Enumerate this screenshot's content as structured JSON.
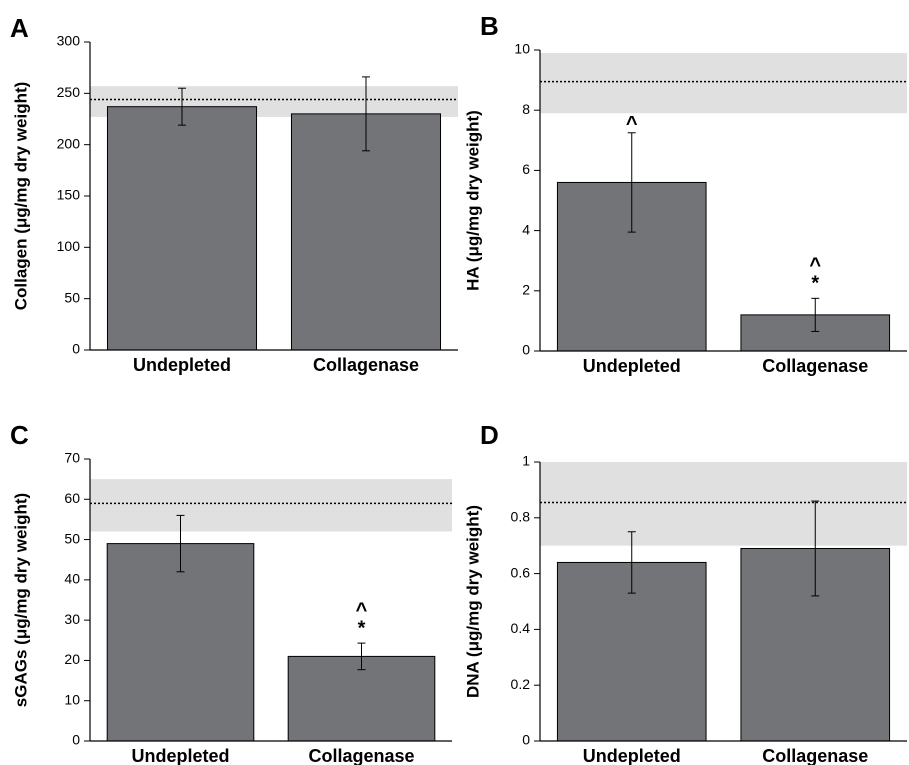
{
  "chart_data": [
    {
      "type": "bar",
      "panel": "A",
      "y_label": "Collagen (μg/mg dry weight)",
      "categories": [
        "Undepleted",
        "Collagenase"
      ],
      "values": [
        237,
        230
      ],
      "errors": [
        18,
        36
      ],
      "color": "#737477",
      "ylim": [
        0,
        300
      ],
      "yticks": [
        0,
        50,
        100,
        150,
        200,
        250,
        300
      ],
      "reference_band": [
        227,
        257
      ],
      "reference_line": 244
    },
    {
      "type": "bar",
      "panel": "B",
      "y_label": "HA (μg/mg dry weight)",
      "categories": [
        "Undepleted",
        "Collagenase"
      ],
      "values": [
        5.6,
        1.2
      ],
      "errors": [
        1.65,
        0.55
      ],
      "color": "#737477",
      "ylim": [
        0,
        10
      ],
      "yticks": [
        0,
        2,
        4,
        6,
        8,
        10
      ],
      "reference_band": [
        7.9,
        9.9
      ],
      "reference_line": 8.95,
      "annotations": [
        [
          "^"
        ],
        [
          "^",
          "*"
        ]
      ]
    },
    {
      "type": "bar",
      "panel": "C",
      "y_label": "sGAGs (μg/mg dry weight)",
      "categories": [
        "Undepleted",
        "Collagenase"
      ],
      "values": [
        49,
        21
      ],
      "errors": [
        7,
        3.3
      ],
      "color": "#737477",
      "ylim": [
        0,
        70
      ],
      "yticks": [
        0,
        10,
        20,
        30,
        40,
        50,
        60,
        70
      ],
      "reference_band": [
        52,
        65
      ],
      "reference_line": 59,
      "annotations": [
        [],
        [
          "^",
          "*"
        ]
      ]
    },
    {
      "type": "bar",
      "panel": "D",
      "y_label": "DNA (μg/mg dry weight)",
      "categories": [
        "Undepleted",
        "Collagenase"
      ],
      "values": [
        0.64,
        0.69
      ],
      "errors": [
        0.11,
        0.17
      ],
      "color": "#737477",
      "ylim": [
        0,
        1
      ],
      "yticks": [
        0,
        0.2,
        0.4,
        0.6,
        0.8,
        1
      ],
      "reference_band": [
        0.7,
        1
      ],
      "reference_line": 0.855
    }
  ]
}
